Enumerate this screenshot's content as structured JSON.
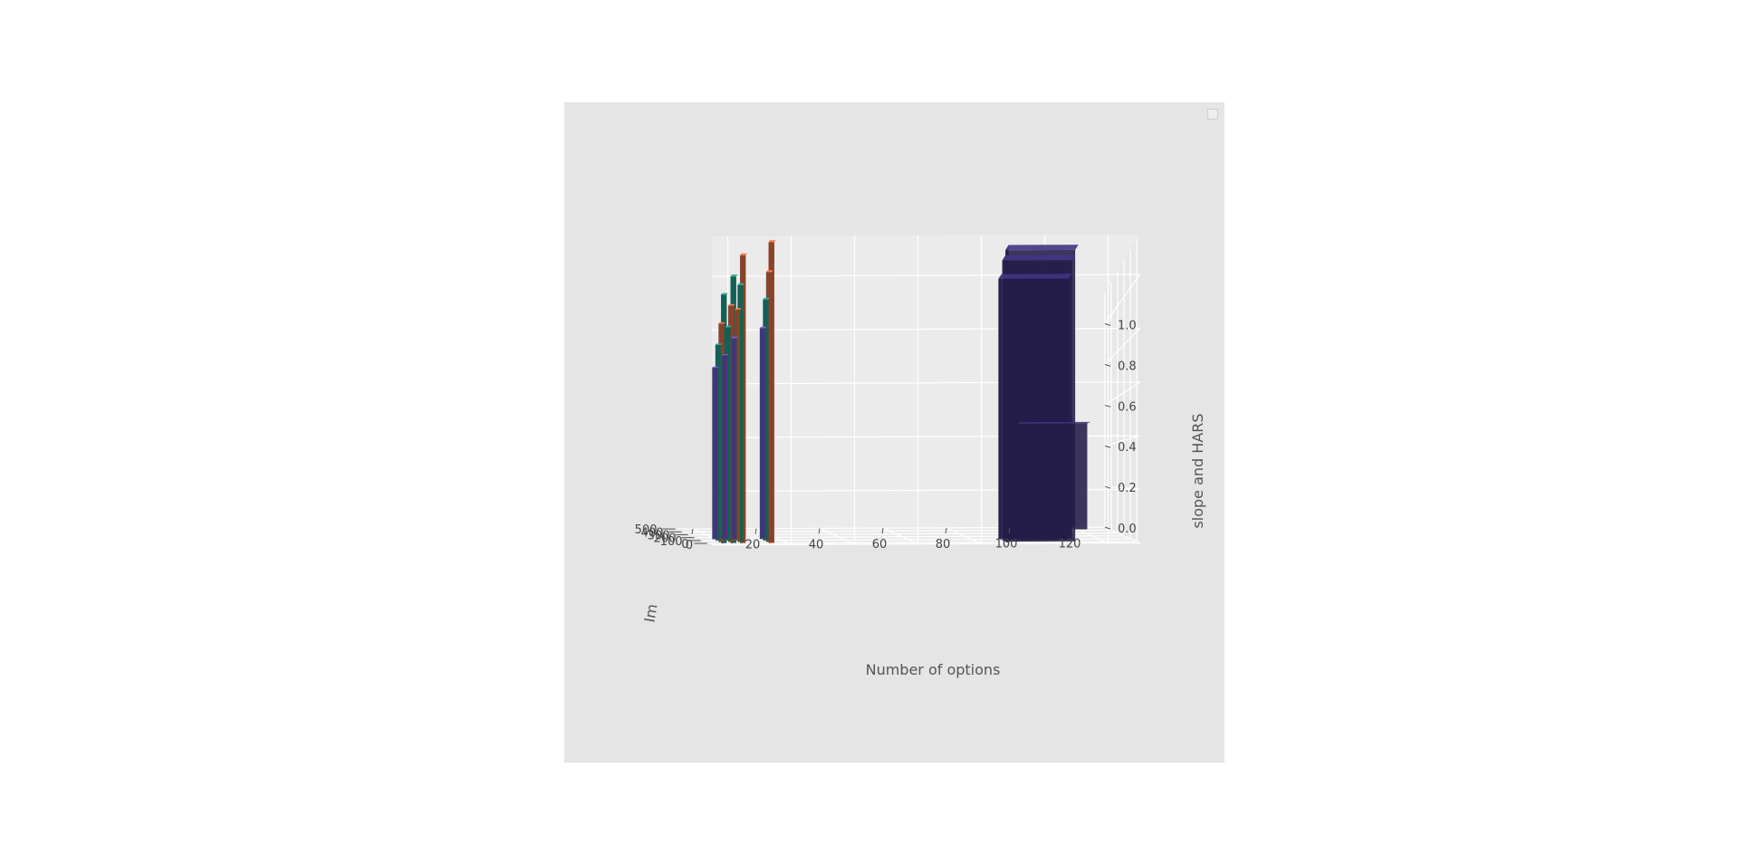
{
  "chart_data": {
    "type": "bar3d",
    "xlabel": "Number of options",
    "ylabel": "Im",
    "zlabel": "slope and HARS",
    "xlim": [
      -5,
      130
    ],
    "ylim": [
      -50,
      500
    ],
    "zlim": [
      0,
      1.15
    ],
    "xticks": [
      "0",
      "20",
      "40",
      "60",
      "80",
      "100",
      "120"
    ],
    "yticks": [
      "0",
      "100",
      "200",
      "300",
      "400",
      "500"
    ],
    "zticks": [
      "0.0",
      "0.2",
      "0.4",
      "0.6",
      "0.8",
      "1.0"
    ],
    "grid": true,
    "colors": {
      "orange": "#e2704a",
      "teal": "#21a08f",
      "purple": "#6b5bc4",
      "dark_purple": "#3b2f78",
      "pane": "#ebebeb",
      "background": "#e5e5e5"
    },
    "bars": [
      {
        "x": 0,
        "y": -10,
        "z": 0.95,
        "color": "teal"
      },
      {
        "x": 0,
        "y": 30,
        "z": 0.85,
        "color": "orange"
      },
      {
        "x": 0,
        "y": 80,
        "z": 0.78,
        "color": "teal"
      },
      {
        "x": 0,
        "y": 130,
        "z": 0.7,
        "color": "purple"
      },
      {
        "x": 3,
        "y": -10,
        "z": 1.02,
        "color": "teal"
      },
      {
        "x": 3,
        "y": 30,
        "z": 0.92,
        "color": "orange"
      },
      {
        "x": 3,
        "y": 80,
        "z": 0.85,
        "color": "teal"
      },
      {
        "x": 3,
        "y": 130,
        "z": 0.75,
        "color": "purple"
      },
      {
        "x": 6,
        "y": -10,
        "z": 1.1,
        "color": "orange"
      },
      {
        "x": 6,
        "y": 30,
        "z": 1.0,
        "color": "teal"
      },
      {
        "x": 6,
        "y": 80,
        "z": 0.92,
        "color": "orange"
      },
      {
        "x": 6,
        "y": 130,
        "z": 0.82,
        "color": "purple"
      },
      {
        "x": 15,
        "y": -10,
        "z": 1.15,
        "color": "orange"
      },
      {
        "x": 15,
        "y": 30,
        "z": 1.05,
        "color": "orange"
      },
      {
        "x": 15,
        "y": 80,
        "z": 0.96,
        "color": "teal"
      },
      {
        "x": 15,
        "y": 130,
        "z": 0.86,
        "color": "purple"
      },
      {
        "x": 100,
        "y": -30,
        "z": 1.12,
        "color": "dark_purple"
      },
      {
        "x": 100,
        "y": 20,
        "z": 1.1,
        "color": "dark_purple"
      },
      {
        "x": 100,
        "y": 80,
        "z": 1.05,
        "color": "dark_purple"
      },
      {
        "x": 112,
        "y": 380,
        "z": 0.5,
        "color": "dark_purple"
      }
    ]
  }
}
